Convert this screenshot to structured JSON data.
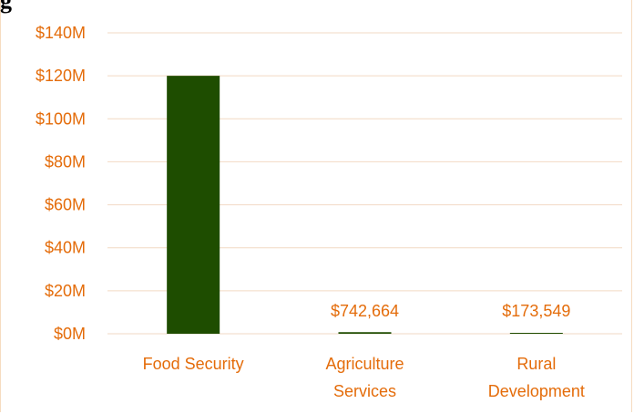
{
  "heading_fragment": "g",
  "colors": {
    "text": "#e46c0a",
    "grid": "#f2d9c4",
    "bar": "#1e4d00",
    "frame": "#f6dcc0"
  },
  "chart_data": {
    "type": "bar",
    "title": "",
    "xlabel": "",
    "ylabel": "",
    "categories": [
      [
        "Food Security"
      ],
      [
        "Agriculture",
        "Services"
      ],
      [
        "Rural",
        "Development"
      ]
    ],
    "values": [
      120000000,
      742664,
      173549
    ],
    "data_labels": [
      "",
      "$742,664",
      "$173,549"
    ],
    "ylim": [
      0,
      140000000
    ],
    "y_ticks": [
      0,
      20000000,
      40000000,
      60000000,
      80000000,
      100000000,
      120000000,
      140000000
    ],
    "y_tick_labels": [
      "$0M",
      "$20M",
      "$40M",
      "$60M",
      "$80M",
      "$100M",
      "$120M",
      "$140M"
    ],
    "grid": true,
    "legend": "none"
  }
}
